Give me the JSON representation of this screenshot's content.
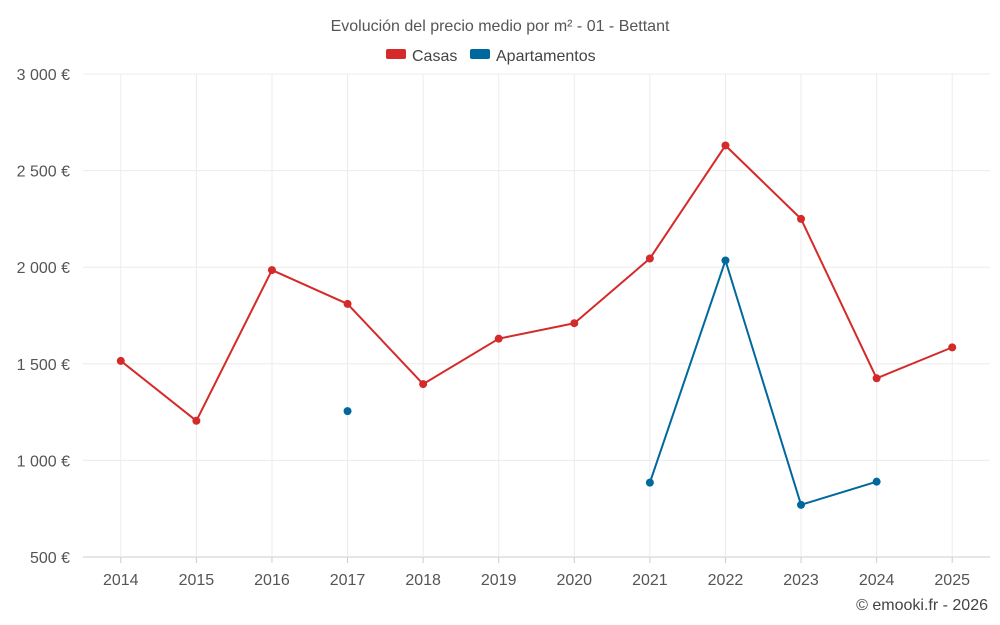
{
  "chart_data": {
    "type": "line",
    "title": "Evolución del precio medio por m² - 01 - Bettant",
    "categories": [
      "2014",
      "2015",
      "2016",
      "2017",
      "2018",
      "2019",
      "2020",
      "2021",
      "2022",
      "2023",
      "2024",
      "2025"
    ],
    "series": [
      {
        "name": "Casas",
        "color": "#d42a2a",
        "values": [
          1515,
          1205,
          1985,
          1810,
          1395,
          1630,
          1710,
          2045,
          2630,
          2250,
          1425,
          1585
        ]
      },
      {
        "name": "Apartamentos",
        "color": "#00689d",
        "values": [
          null,
          null,
          null,
          1255,
          null,
          null,
          null,
          885,
          2035,
          770,
          890,
          null
        ]
      }
    ],
    "ylim": [
      500,
      3000
    ],
    "yticks": [
      500,
      1000,
      1500,
      2000,
      2500,
      3000
    ],
    "ytick_labels": [
      "500 €",
      "1 000 €",
      "1 500 €",
      "2 000 €",
      "2 500 €",
      "3 000 €"
    ],
    "grid": true,
    "legend_position": "top-center",
    "credit": "© emooki.fr - 2026"
  }
}
